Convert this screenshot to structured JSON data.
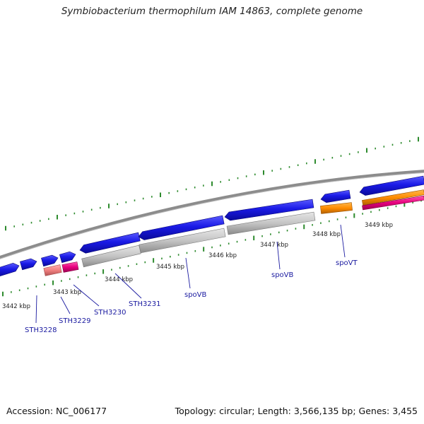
{
  "header": {
    "title": "Symbiobacterium thermophilum IAM 14863, complete genome"
  },
  "footer": {
    "accession": "Accession: NC_006177",
    "topology": "Topology: circular; Length: 3,566,135 bp; Genes: 3,455"
  },
  "colors": {
    "cds": "#1a1ae6",
    "gene": "#c4c4c4",
    "rRNA": "#f08080",
    "tRNA": "#e6007e",
    "ncRNA": "#ff8c00",
    "backbone": "#8c8c8c",
    "ticks": "#2e8b2e",
    "labels": "#1a1aa0"
  },
  "ruler": [
    "3442 kbp",
    "3443 kbp",
    "3444 kbp",
    "3445 kbp",
    "3446 kbp",
    "3447 kbp",
    "3448 kbp",
    "3449 kbp"
  ],
  "gene_labels": [
    "STH3228",
    "STH3229",
    "STH3230",
    "STH3231",
    "spoVB",
    "spoVB",
    "spoVT"
  ]
}
